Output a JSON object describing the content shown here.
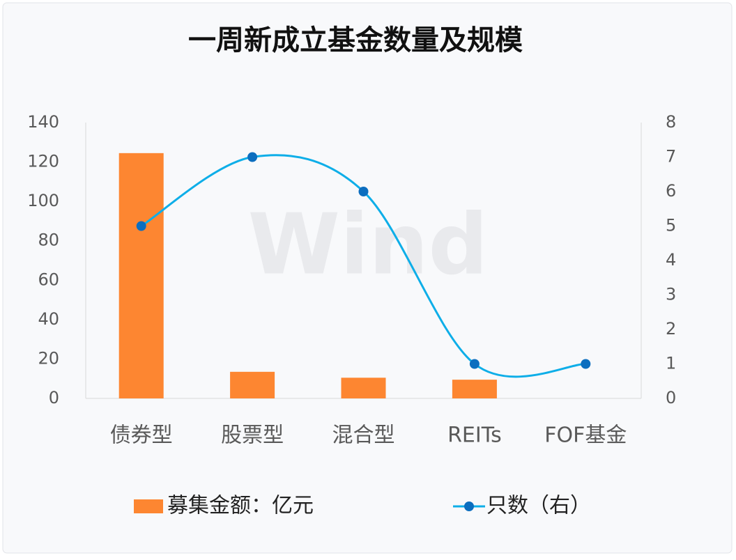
{
  "chart_data": {
    "type": "bar",
    "title": "一周新成立基金数量及规模",
    "watermark": "Wind",
    "categories": [
      "债券型",
      "股票型",
      "混合型",
      "REITs",
      "FOF基金"
    ],
    "series": [
      {
        "name": "募集金额：亿元",
        "type": "bar",
        "color": "#fd8631",
        "values": [
          124.5,
          13.5,
          10.5,
          9.5,
          0
        ]
      },
      {
        "name": "只数（右）",
        "type": "line",
        "axis": "y2",
        "color": "#0eaee8",
        "marker_color": "#0c6ebf",
        "values": [
          5,
          7,
          6,
          1,
          1
        ]
      }
    ],
    "ylim": [
      0,
      140
    ],
    "yticks": [
      0,
      20,
      40,
      60,
      80,
      100,
      120,
      140
    ],
    "y2lim": [
      0,
      8
    ],
    "y2ticks": [
      0,
      1,
      2,
      3,
      4,
      5,
      6,
      7,
      8
    ],
    "grid": false
  }
}
